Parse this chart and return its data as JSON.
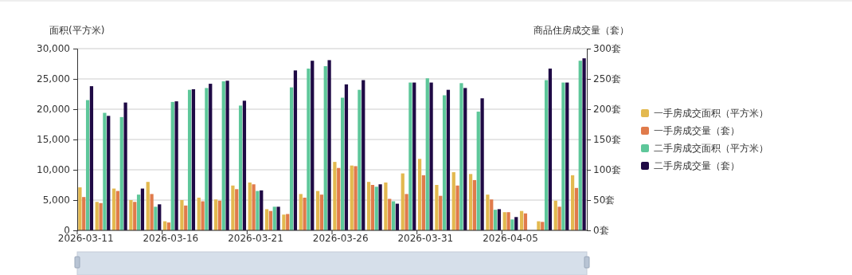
{
  "chart_data": {
    "type": "bar",
    "ylabel": "面积(平方米)",
    "y2label": "商品住房成交量（套）",
    "categories": [
      "2026-03-11",
      null,
      null,
      null,
      null,
      "2026-03-16",
      null,
      null,
      null,
      null,
      "2026-03-21",
      null,
      null,
      null,
      null,
      "2026-03-26",
      null,
      null,
      null,
      null,
      "2026-03-31",
      null,
      null,
      null,
      null,
      "2026-04-05",
      null,
      null,
      null,
      null
    ],
    "series": [
      {
        "name": "一手房成交面积（平方米）",
        "color": "#e3b94f",
        "values": [
          7100,
          4700,
          6900,
          5000,
          8000,
          1500,
          5000,
          5400,
          5100,
          7400,
          7900,
          3500,
          2600,
          6000,
          6500,
          11300,
          10700,
          8000,
          7900,
          9400,
          11800,
          7500,
          9600,
          9300,
          5900,
          3000,
          3200,
          1500,
          4900,
          9100
        ]
      },
      {
        "name": "一手房成交量（套）",
        "color": "#e07b4b",
        "axis": "y2",
        "values": [
          55,
          45,
          65,
          47,
          60,
          13,
          41,
          48,
          49,
          68,
          76,
          32,
          27,
          54,
          59,
          103,
          106,
          75,
          52,
          60,
          91,
          57,
          74,
          83,
          51,
          30,
          28,
          14,
          39,
          70
        ]
      },
      {
        "name": "二手房成交面积（平方米）",
        "color": "#5ec79a",
        "values": [
          21500,
          19400,
          18700,
          5900,
          3900,
          21200,
          23200,
          23500,
          24600,
          20600,
          6500,
          3900,
          23600,
          26700,
          27100,
          21900,
          23200,
          7200,
          4800,
          24400,
          25100,
          22300,
          24300,
          19600,
          3400,
          1800,
          null,
          24800,
          24400,
          28000
        ]
      },
      {
        "name": "二手房成交量（套）",
        "color": "#1f0a45",
        "axis": "y2",
        "values": [
          238,
          189,
          211,
          69,
          43,
          213,
          233,
          242,
          247,
          214,
          66,
          39,
          264,
          280,
          281,
          241,
          248,
          76,
          44,
          244,
          244,
          232,
          235,
          218,
          35,
          22,
          null,
          267,
          244,
          284
        ]
      }
    ],
    "ylim": [
      0,
      30000
    ],
    "yticks": [
      {
        "value": 0,
        "label": "0"
      },
      {
        "value": 5000,
        "label": "5,000"
      },
      {
        "value": 10000,
        "label": "10,000"
      },
      {
        "value": 15000,
        "label": "15,000"
      },
      {
        "value": 20000,
        "label": "20,000"
      },
      {
        "value": 25000,
        "label": "25,000"
      },
      {
        "value": 30000,
        "label": "30,000"
      }
    ],
    "y2lim": [
      0,
      300
    ],
    "y2ticks": [
      {
        "value": 0,
        "label": "0套"
      },
      {
        "value": 50,
        "label": "50套"
      },
      {
        "value": 100,
        "label": "100套"
      },
      {
        "value": 150,
        "label": "150套"
      },
      {
        "value": 200,
        "label": "200套"
      },
      {
        "value": 250,
        "label": "250套"
      },
      {
        "value": 300,
        "label": "300套"
      }
    ],
    "grid": "y",
    "legend": "right"
  }
}
